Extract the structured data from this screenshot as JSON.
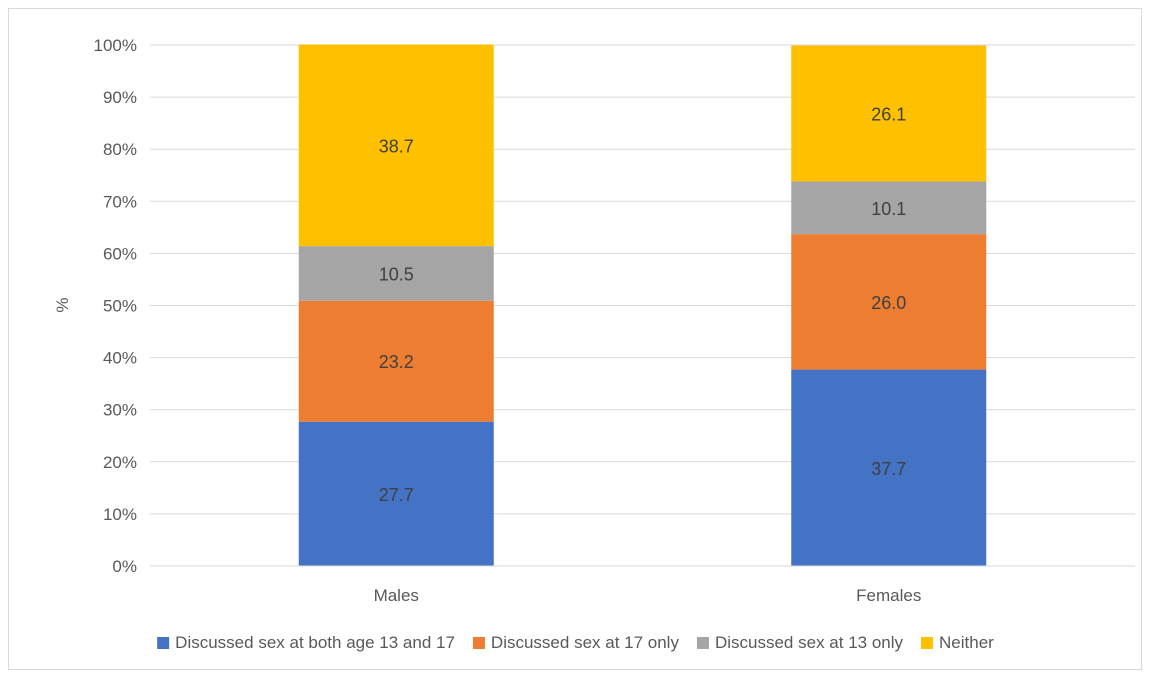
{
  "chart_data": {
    "type": "bar",
    "stacked": true,
    "title": "",
    "xlabel": "",
    "ylabel": "%",
    "ylim": [
      0,
      100
    ],
    "y_tick_format": "percent",
    "y_ticks": [
      0,
      10,
      20,
      30,
      40,
      50,
      60,
      70,
      80,
      90,
      100
    ],
    "y_tick_labels": [
      "0%",
      "10%",
      "20%",
      "30%",
      "40%",
      "50%",
      "60%",
      "70%",
      "80%",
      "90%",
      "100%"
    ],
    "categories": [
      "Males",
      "Females"
    ],
    "series": [
      {
        "name": "Discussed sex at both age 13 and 17",
        "color": "#4472c4",
        "values": [
          27.7,
          37.7
        ],
        "labels": [
          "27.7",
          "37.7"
        ]
      },
      {
        "name": "Discussed sex at 17 only",
        "color": "#ed7d31",
        "values": [
          23.2,
          26.0
        ],
        "labels": [
          "23.2",
          "26.0"
        ]
      },
      {
        "name": "Discussed sex at 13 only",
        "color": "#a5a5a5",
        "values": [
          10.5,
          10.1
        ],
        "labels": [
          "10.5",
          "10.1"
        ]
      },
      {
        "name": "Neither",
        "color": "#ffc000",
        "values": [
          38.7,
          26.1
        ],
        "labels": [
          "38.7",
          "26.1"
        ]
      }
    ],
    "grid": true,
    "legend_position": "bottom"
  }
}
